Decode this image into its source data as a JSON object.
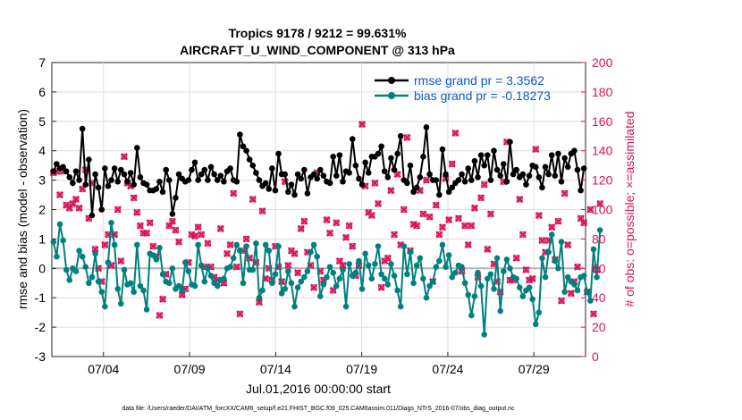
{
  "chart_data": {
    "type": "line",
    "title": "Tropics 9178 / 9212 = 99.631%",
    "subtitle": "AIRCRAFT_U_WIND_COMPONENT @ 313 hPa",
    "xlabel": "Jul.01,2016 00:00:00 start",
    "ylabel": "rmse and bias (model - observation)",
    "y2label": "# of obs: o=possible; ×=assimilated",
    "footer": "data file: /Users/raeder/DAI/ATM_forcXX/CAM6_setup/f.e21.FHIST_BGC.f09_025.CAM6assim.011/Diags_NTrS_2016-07/obs_diag_output.nc",
    "xlim": [
      1,
      32
    ],
    "ylim": [
      -3,
      7
    ],
    "y2lim": [
      0,
      200
    ],
    "xticks": [
      4,
      9,
      14,
      19,
      24,
      29
    ],
    "xticklabels": [
      "07/04",
      "07/09",
      "07/14",
      "07/19",
      "07/24",
      "07/29"
    ],
    "yticks": [
      -3,
      -2,
      -1,
      0,
      1,
      2,
      3,
      4,
      5,
      6,
      7
    ],
    "y2ticks": [
      0,
      20,
      40,
      60,
      80,
      100,
      120,
      140,
      160,
      180,
      200
    ],
    "colors": {
      "rmse": "#000000",
      "bias": "#00807f",
      "obs": "#d6135a",
      "legend_text": "#0b57d0",
      "zero_line": "#b4b4b4"
    },
    "legend": [
      {
        "name": "rmse grand pr = 3.3562",
        "series": "rmse"
      },
      {
        "name": "bias grand pr = -0.18273",
        "series": "bias"
      }
    ],
    "series": [
      {
        "name": "rmse",
        "values": [
          3.3,
          3.55,
          3.4,
          3.45,
          3.3,
          3.1,
          2.9,
          3.3,
          3.0,
          4.75,
          2.85,
          3.7,
          1.8,
          3.2,
          2.75,
          2.0,
          3.4,
          2.8,
          3.0,
          3.4,
          2.95,
          3.35,
          3.2,
          2.95,
          3.25,
          2.85,
          4.1,
          3.1,
          2.9,
          2.85,
          2.65,
          2.65,
          2.7,
          2.95,
          2.6,
          3.35,
          3.0,
          1.85,
          2.4,
          3.2,
          3.05,
          2.95,
          3.0,
          3.35,
          3.6,
          3.0,
          3.2,
          3.35,
          3.0,
          3.45,
          3.2,
          3.0,
          3.15,
          2.95,
          3.3,
          3.4,
          3.0,
          2.95,
          4.55,
          4.15,
          4.0,
          3.7,
          3.5,
          3.25,
          3.0,
          2.8,
          2.9,
          2.7,
          3.4,
          2.65,
          3.9,
          3.2,
          3.2,
          2.6,
          2.85,
          2.5,
          3.2,
          3.05,
          3.35,
          2.55,
          3.1,
          3.2,
          3.05,
          3.35,
          3.15,
          2.95,
          2.9,
          3.8,
          3.15,
          3.85,
          2.95,
          3.3,
          3.25,
          4.4,
          3.5,
          3.05,
          2.85,
          3.6,
          3.25,
          3.8,
          3.8,
          3.9,
          4.15,
          3.3,
          3.1,
          3.75,
          3.35,
          3.9,
          4.5,
          3.0,
          2.9,
          3.5,
          2.6,
          2.75,
          3.1,
          3.8,
          4.8,
          3.2,
          3.0,
          3.0,
          2.5,
          4.05,
          3.2,
          2.6,
          2.75,
          2.9,
          3.0,
          3.2,
          2.95,
          3.4,
          3.0,
          3.65,
          3.1,
          3.85,
          3.5,
          3.85,
          3.0,
          4.0,
          3.35,
          3.15,
          3.55,
          2.95,
          4.3,
          3.2,
          3.35,
          3.1,
          3.2,
          2.85,
          3.15,
          3.5,
          3.45,
          3.1,
          2.75,
          3.45,
          3.2,
          3.85,
          3.15,
          3.9,
          2.95,
          3.75,
          3.45,
          3.9,
          4.0,
          3.35,
          2.65,
          3.4
        ]
      },
      {
        "name": "bias",
        "values": [
          0.9,
          0.4,
          1.5,
          0.95,
          -0.05,
          -0.4,
          0.0,
          -0.1,
          0.6,
          0.4,
          0.05,
          -0.5,
          -0.3,
          0.5,
          -0.45,
          -0.8,
          -1.3,
          0.2,
          1.55,
          0.8,
          -0.7,
          -1.2,
          -0.05,
          -0.55,
          -0.5,
          -0.8,
          0.8,
          -0.6,
          -0.75,
          -1.4,
          0.5,
          0.45,
          0.3,
          0.7,
          -0.2,
          -0.45,
          -0.5,
          0.0,
          -0.7,
          -0.6,
          -0.75,
          0.2,
          -0.1,
          -0.55,
          -0.6,
          0.8,
          0.1,
          -0.45,
          0.0,
          -0.25,
          -0.5,
          -0.6,
          -0.4,
          -0.35,
          0.0,
          0.05,
          0.35,
          0.8,
          0.6,
          -0.5,
          0.75,
          -0.05,
          -0.05,
          0.85,
          -1.0,
          -0.75,
          0.8,
          0.6,
          -0.5,
          -0.2,
          0.75,
          -0.85,
          -0.7,
          -0.1,
          -0.5,
          -1.3,
          -0.65,
          -0.45,
          -0.3,
          -0.1,
          0.55,
          0.8,
          0.4,
          -0.95,
          -0.55,
          -0.3,
          0.05,
          -0.15,
          -0.6,
          -0.35,
          -0.05,
          -1.3,
          0.15,
          -0.25,
          -0.15,
          0.25,
          -0.7,
          0.5,
          0.1,
          -0.35,
          0.15,
          0.75,
          -0.2,
          -0.35,
          -0.55,
          0.15,
          -0.25,
          -0.75,
          -1.3,
          0.75,
          -0.2,
          0.55,
          -0.5,
          0.1,
          0.35,
          -0.35,
          -1.0,
          -0.6,
          -0.45,
          0.05,
          0.25,
          0.8,
          0.05,
          0.45,
          -0.3,
          -0.15,
          0.1,
          0.05,
          -0.5,
          -0.9,
          -1.6,
          -0.95,
          -0.15,
          -0.6,
          -2.25,
          -0.35,
          -0.2,
          -0.7,
          0.35,
          -1.45,
          -0.1,
          0.3,
          0.0,
          -0.3,
          -0.35,
          -0.65,
          -0.95,
          -0.75,
          -0.65,
          -1.05,
          -1.9,
          -1.5,
          0.35,
          -0.3,
          0.55,
          1.15,
          0.25,
          0.0,
          0.9,
          -0.8,
          -0.3,
          -0.45,
          -0.55,
          -0.75,
          -0.3,
          -0.25,
          -0.8,
          -1.1,
          0.65,
          -0.3,
          1.3
        ]
      },
      {
        "name": "obs_possible",
        "axis": "right",
        "values": [
          125,
          126,
          110,
          126,
          103,
          101,
          104,
          107,
          101,
          114,
          127,
          94,
          118,
          73,
          60,
          51,
          76,
          83,
          62,
          83,
          100,
          65,
          136,
          118,
          116,
          108,
          98,
          89,
          84,
          84,
          91,
          75,
          68,
          28,
          39,
          56,
          89,
          92,
          86,
          78,
          42,
          46,
          64,
          83,
          82,
          88,
          83,
          61,
          77,
          61,
          54,
          52,
          87,
          50,
          70,
          76,
          111,
          61,
          29,
          72,
          80,
          67,
          107,
          64,
          37,
          99,
          53,
          60,
          52,
          75,
          61,
          51,
          119,
          62,
          72,
          70,
          57,
          87,
          92,
          71,
          62,
          47,
          125,
          58,
          52,
          93,
          84,
          45,
          91,
          65,
          62,
          81,
          89,
          75,
          55,
          62,
          158,
          116,
          98,
          96,
          118,
          104,
          47,
          65,
          67,
          113,
          83,
          124,
          76,
          100,
          149,
          72,
          90,
          89,
          113,
          97,
          120,
          95,
          51,
          103,
          83,
          88,
          121,
          93,
          131,
          152,
          94,
          58,
          89,
          76,
          89,
          101,
          54,
          108,
          117,
          73,
          97,
          63,
          51,
          44,
          119,
          146,
          52,
          52,
          67,
          107,
          83,
          59,
          52,
          53,
          141,
          96,
          79,
          71,
          79,
          88,
          66,
          92,
          38,
          111,
          76,
          43,
          51,
          61,
          94,
          91,
          44,
          100,
          29,
          59,
          104
        ]
      },
      {
        "name": "obs_assimilated",
        "axis": "right",
        "values": [
          125,
          126,
          110,
          126,
          103,
          101,
          104,
          107,
          101,
          114,
          127,
          94,
          118,
          73,
          60,
          51,
          76,
          83,
          62,
          83,
          100,
          65,
          136,
          118,
          116,
          108,
          98,
          89,
          84,
          84,
          91,
          75,
          68,
          28,
          39,
          56,
          89,
          92,
          86,
          78,
          42,
          46,
          64,
          83,
          82,
          88,
          83,
          61,
          77,
          61,
          54,
          52,
          87,
          50,
          70,
          76,
          111,
          61,
          29,
          72,
          80,
          67,
          107,
          64,
          37,
          99,
          53,
          60,
          52,
          75,
          61,
          51,
          119,
          62,
          72,
          70,
          57,
          87,
          92,
          71,
          62,
          47,
          125,
          58,
          52,
          93,
          84,
          45,
          91,
          65,
          62,
          81,
          89,
          75,
          55,
          62,
          158,
          116,
          98,
          96,
          118,
          104,
          47,
          65,
          67,
          113,
          83,
          124,
          76,
          100,
          149,
          72,
          90,
          89,
          113,
          97,
          120,
          95,
          51,
          103,
          83,
          88,
          121,
          93,
          131,
          152,
          94,
          58,
          89,
          76,
          89,
          101,
          54,
          108,
          117,
          73,
          97,
          63,
          51,
          44,
          119,
          146,
          52,
          52,
          67,
          107,
          83,
          59,
          52,
          53,
          141,
          96,
          79,
          71,
          79,
          88,
          66,
          92,
          38,
          111,
          76,
          43,
          51,
          61,
          94,
          91,
          44,
          100,
          29,
          59,
          104
        ]
      }
    ]
  }
}
